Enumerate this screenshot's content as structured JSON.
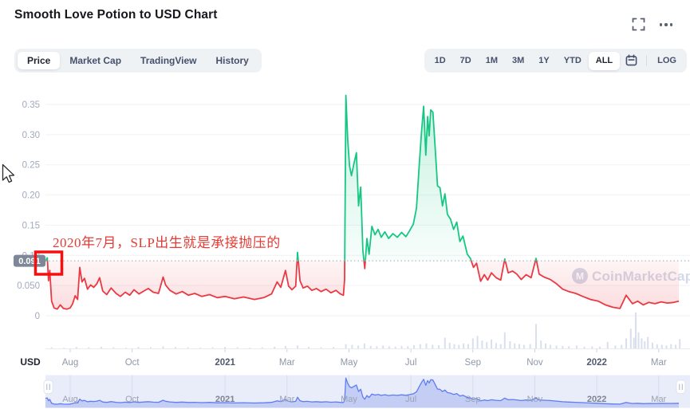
{
  "header": {
    "title": "Smooth Love Potion to USD Chart",
    "icons": [
      "fullscreen-icon",
      "more-ellipsis-icon"
    ]
  },
  "toolbar": {
    "tabs": [
      {
        "label": "Price",
        "active": true
      },
      {
        "label": "Market Cap",
        "active": false
      },
      {
        "label": "TradingView",
        "active": false
      },
      {
        "label": "History",
        "active": false
      }
    ],
    "ranges": [
      {
        "label": "1D",
        "active": false
      },
      {
        "label": "7D",
        "active": false
      },
      {
        "label": "1M",
        "active": false
      },
      {
        "label": "3M",
        "active": false
      },
      {
        "label": "1Y",
        "active": false
      },
      {
        "label": "YTD",
        "active": false
      },
      {
        "label": "ALL",
        "active": true
      }
    ],
    "calendar_icon": "calendar-icon",
    "log_label": "LOG"
  },
  "chart": {
    "unit_label": "USD",
    "current_price_badge": "0.091",
    "watermark": "CoinMarketCap",
    "annotation": {
      "text": "2020年7月，SLP出生就是承接抛压的",
      "color": "#e23c35",
      "box_color": "#f50f0f"
    },
    "colors": {
      "up_green": "#16c784",
      "down_red": "#ea3943",
      "badge_bg": "#7e8798",
      "dotted_ref": "#aeb6c6",
      "grid": "#f0f2f6",
      "volume_bar": "#d9dfec",
      "nav_line": "#5d7df2",
      "nav_fill": "#c4cdf4",
      "nav_bg": "#e9ecf9",
      "watermark": "#d3d9e8"
    }
  },
  "chart_data": {
    "type": "line",
    "title": "Smooth Love Potion to USD Chart",
    "ylabel": "USD",
    "ylim": [
      0,
      0.37
    ],
    "x_unit": "months since 2020-08-01 (ALL range: Jul 2020 – Mar 2022)",
    "x_range": [
      -0.8,
      19.65
    ],
    "current_price": 0.091,
    "line_color_rule": "green where price is above current_price 0.091, red where below",
    "grid": true,
    "y_ticks": [
      {
        "v": 0.35,
        "label": "0.35"
      },
      {
        "v": 0.3,
        "label": "0.30"
      },
      {
        "v": 0.25,
        "label": "0.25"
      },
      {
        "v": 0.2,
        "label": "0.20"
      },
      {
        "v": 0.15,
        "label": "0.15"
      },
      {
        "v": 0.1,
        "label": "0.10"
      },
      {
        "v": 0.05,
        "label": "0.050"
      },
      {
        "v": 0,
        "label": "0"
      }
    ],
    "x_ticks": [
      {
        "m": 0,
        "label": "Aug",
        "year": false
      },
      {
        "m": 2,
        "label": "Oct",
        "year": false
      },
      {
        "m": 5,
        "label": "2021",
        "year": true
      },
      {
        "m": 7,
        "label": "Mar",
        "year": false
      },
      {
        "m": 9,
        "label": "May",
        "year": false
      },
      {
        "m": 11,
        "label": "Jul",
        "year": false
      },
      {
        "m": 13,
        "label": "Sep",
        "year": false
      },
      {
        "m": 15,
        "label": "Nov",
        "year": false
      },
      {
        "m": 17,
        "label": "2022",
        "year": true
      },
      {
        "m": 19,
        "label": "Mar",
        "year": false
      }
    ],
    "series": [
      {
        "name": "SLP/USD price",
        "points": [
          [
            -0.8,
            0.09
          ],
          [
            -0.74,
            0.096
          ],
          [
            -0.7,
            0.058
          ],
          [
            -0.66,
            0.075
          ],
          [
            -0.6,
            0.024
          ],
          [
            -0.52,
            0.013
          ],
          [
            -0.42,
            0.011
          ],
          [
            -0.32,
            0.018
          ],
          [
            -0.22,
            0.012
          ],
          [
            -0.1,
            0.011
          ],
          [
            0.0,
            0.013
          ],
          [
            0.08,
            0.02
          ],
          [
            0.16,
            0.033
          ],
          [
            0.24,
            0.027
          ],
          [
            0.31,
            0.08
          ],
          [
            0.38,
            0.056
          ],
          [
            0.46,
            0.062
          ],
          [
            0.56,
            0.044
          ],
          [
            0.66,
            0.051
          ],
          [
            0.76,
            0.047
          ],
          [
            0.86,
            0.053
          ],
          [
            0.95,
            0.063
          ],
          [
            1.05,
            0.041
          ],
          [
            1.18,
            0.035
          ],
          [
            1.32,
            0.046
          ],
          [
            1.48,
            0.037
          ],
          [
            1.62,
            0.032
          ],
          [
            1.78,
            0.039
          ],
          [
            1.92,
            0.034
          ],
          [
            2.06,
            0.043
          ],
          [
            2.22,
            0.036
          ],
          [
            2.38,
            0.041
          ],
          [
            2.52,
            0.045
          ],
          [
            2.68,
            0.039
          ],
          [
            2.85,
            0.037
          ],
          [
            3.0,
            0.064
          ],
          [
            3.08,
            0.051
          ],
          [
            3.22,
            0.042
          ],
          [
            3.42,
            0.036
          ],
          [
            3.62,
            0.04
          ],
          [
            3.82,
            0.034
          ],
          [
            4.02,
            0.037
          ],
          [
            4.25,
            0.032
          ],
          [
            4.5,
            0.035
          ],
          [
            4.75,
            0.03
          ],
          [
            5.0,
            0.032
          ],
          [
            5.3,
            0.028
          ],
          [
            5.6,
            0.031
          ],
          [
            5.95,
            0.027
          ],
          [
            6.25,
            0.03
          ],
          [
            6.5,
            0.036
          ],
          [
            6.68,
            0.056
          ],
          [
            6.8,
            0.047
          ],
          [
            6.95,
            0.075
          ],
          [
            7.05,
            0.049
          ],
          [
            7.16,
            0.043
          ],
          [
            7.28,
            0.049
          ],
          [
            7.34,
            0.105
          ],
          [
            7.42,
            0.058
          ],
          [
            7.52,
            0.046
          ],
          [
            7.66,
            0.049
          ],
          [
            7.8,
            0.042
          ],
          [
            7.95,
            0.045
          ],
          [
            8.1,
            0.04
          ],
          [
            8.26,
            0.044
          ],
          [
            8.42,
            0.038
          ],
          [
            8.58,
            0.042
          ],
          [
            8.72,
            0.036
          ],
          [
            8.82,
            0.034
          ],
          [
            8.86,
            0.06
          ],
          [
            8.9,
            0.365
          ],
          [
            8.96,
            0.292
          ],
          [
            9.02,
            0.248
          ],
          [
            9.08,
            0.232
          ],
          [
            9.16,
            0.252
          ],
          [
            9.24,
            0.27
          ],
          [
            9.31,
            0.182
          ],
          [
            9.38,
            0.213
          ],
          [
            9.45,
            0.108
          ],
          [
            9.51,
            0.078
          ],
          [
            9.58,
            0.128
          ],
          [
            9.65,
            0.102
          ],
          [
            9.74,
            0.148
          ],
          [
            9.84,
            0.134
          ],
          [
            9.94,
            0.143
          ],
          [
            10.04,
            0.13
          ],
          [
            10.16,
            0.139
          ],
          [
            10.28,
            0.128
          ],
          [
            10.42,
            0.136
          ],
          [
            10.56,
            0.13
          ],
          [
            10.7,
            0.138
          ],
          [
            10.84,
            0.131
          ],
          [
            10.96,
            0.141
          ],
          [
            11.08,
            0.152
          ],
          [
            11.18,
            0.178
          ],
          [
            11.27,
            0.25
          ],
          [
            11.34,
            0.302
          ],
          [
            11.41,
            0.347
          ],
          [
            11.48,
            0.266
          ],
          [
            11.54,
            0.33
          ],
          [
            11.59,
            0.298
          ],
          [
            11.64,
            0.341
          ],
          [
            11.71,
            0.337
          ],
          [
            11.78,
            0.281
          ],
          [
            11.86,
            0.215
          ],
          [
            11.94,
            0.212
          ],
          [
            12.02,
            0.182
          ],
          [
            12.1,
            0.202
          ],
          [
            12.18,
            0.168
          ],
          [
            12.28,
            0.16
          ],
          [
            12.38,
            0.143
          ],
          [
            12.48,
            0.155
          ],
          [
            12.58,
            0.123
          ],
          [
            12.68,
            0.132
          ],
          [
            12.82,
            0.102
          ],
          [
            12.92,
            0.095
          ],
          [
            13.02,
            0.08
          ],
          [
            13.12,
            0.087
          ],
          [
            13.25,
            0.057
          ],
          [
            13.37,
            0.068
          ],
          [
            13.48,
            0.059
          ],
          [
            13.6,
            0.071
          ],
          [
            13.75,
            0.063
          ],
          [
            13.9,
            0.059
          ],
          [
            14.03,
            0.094
          ],
          [
            14.14,
            0.071
          ],
          [
            14.28,
            0.074
          ],
          [
            14.42,
            0.069
          ],
          [
            14.56,
            0.06
          ],
          [
            14.72,
            0.068
          ],
          [
            14.88,
            0.063
          ],
          [
            15.04,
            0.095
          ],
          [
            15.14,
            0.069
          ],
          [
            15.3,
            0.064
          ],
          [
            15.5,
            0.06
          ],
          [
            15.7,
            0.053
          ],
          [
            15.9,
            0.044
          ],
          [
            16.1,
            0.04
          ],
          [
            16.32,
            0.037
          ],
          [
            16.55,
            0.032
          ],
          [
            16.8,
            0.027
          ],
          [
            17.05,
            0.024
          ],
          [
            17.28,
            0.018
          ],
          [
            17.52,
            0.014
          ],
          [
            17.75,
            0.012
          ],
          [
            17.95,
            0.034
          ],
          [
            18.05,
            0.027
          ],
          [
            18.15,
            0.02
          ],
          [
            18.32,
            0.024
          ],
          [
            18.5,
            0.018
          ],
          [
            18.68,
            0.022
          ],
          [
            18.88,
            0.02
          ],
          [
            19.08,
            0.023
          ],
          [
            19.28,
            0.021
          ],
          [
            19.48,
            0.022
          ],
          [
            19.65,
            0.024
          ]
        ]
      }
    ],
    "volume_bars_relative": [
      [
        -0.6,
        0.03
      ],
      [
        -0.2,
        0.02
      ],
      [
        0.2,
        0.04
      ],
      [
        0.6,
        0.03
      ],
      [
        1.0,
        0.05
      ],
      [
        1.4,
        0.03
      ],
      [
        1.8,
        0.02
      ],
      [
        2.2,
        0.04
      ],
      [
        2.6,
        0.03
      ],
      [
        3.0,
        0.06
      ],
      [
        3.4,
        0.04
      ],
      [
        3.8,
        0.03
      ],
      [
        4.2,
        0.02
      ],
      [
        4.6,
        0.03
      ],
      [
        5.0,
        0.04
      ],
      [
        5.4,
        0.03
      ],
      [
        5.8,
        0.02
      ],
      [
        6.2,
        0.03
      ],
      [
        6.6,
        0.05
      ],
      [
        6.95,
        0.07
      ],
      [
        7.34,
        0.08
      ],
      [
        7.7,
        0.04
      ],
      [
        8.1,
        0.03
      ],
      [
        8.5,
        0.04
      ],
      [
        8.9,
        0.12
      ],
      [
        9.1,
        0.1
      ],
      [
        9.3,
        0.08
      ],
      [
        9.5,
        0.14
      ],
      [
        9.7,
        0.07
      ],
      [
        9.9,
        0.06
      ],
      [
        10.1,
        0.08
      ],
      [
        10.3,
        0.06
      ],
      [
        10.5,
        0.05
      ],
      [
        10.7,
        0.07
      ],
      [
        10.9,
        0.06
      ],
      [
        11.1,
        0.09
      ],
      [
        11.3,
        0.12
      ],
      [
        11.5,
        0.14
      ],
      [
        11.7,
        0.1
      ],
      [
        11.9,
        0.09
      ],
      [
        12.1,
        0.3
      ],
      [
        12.25,
        0.16
      ],
      [
        12.4,
        0.12
      ],
      [
        12.55,
        0.1
      ],
      [
        12.7,
        0.14
      ],
      [
        12.85,
        0.12
      ],
      [
        13.0,
        0.28
      ],
      [
        13.15,
        0.35
      ],
      [
        13.3,
        0.22
      ],
      [
        13.45,
        0.18
      ],
      [
        13.6,
        0.25
      ],
      [
        13.75,
        0.15
      ],
      [
        13.9,
        0.12
      ],
      [
        14.03,
        0.45
      ],
      [
        14.2,
        0.2
      ],
      [
        14.35,
        0.14
      ],
      [
        14.5,
        0.12
      ],
      [
        14.65,
        0.1
      ],
      [
        14.85,
        0.12
      ],
      [
        15.04,
        0.68
      ],
      [
        15.2,
        0.22
      ],
      [
        15.35,
        0.14
      ],
      [
        15.5,
        0.1
      ],
      [
        15.7,
        0.08
      ],
      [
        15.9,
        0.07
      ],
      [
        16.1,
        0.06
      ],
      [
        16.35,
        0.08
      ],
      [
        16.6,
        0.05
      ],
      [
        16.85,
        0.06
      ],
      [
        17.1,
        0.05
      ],
      [
        17.35,
        0.18
      ],
      [
        17.6,
        0.08
      ],
      [
        17.8,
        0.1
      ],
      [
        17.95,
        0.28
      ],
      [
        18.1,
        0.55
      ],
      [
        18.2,
        0.3
      ],
      [
        18.26,
        1.0
      ],
      [
        18.35,
        0.45
      ],
      [
        18.45,
        0.28
      ],
      [
        18.55,
        0.2
      ],
      [
        18.65,
        0.32
      ],
      [
        18.8,
        0.16
      ],
      [
        18.95,
        0.12
      ],
      [
        19.1,
        0.1
      ],
      [
        19.25,
        0.08
      ],
      [
        19.4,
        0.12
      ],
      [
        19.55,
        0.1
      ],
      [
        19.68,
        0.26
      ]
    ],
    "navigator": {
      "description": "range selector minimap showing full series, both handles at extremes (ALL selected)",
      "handle_icon": "drag-handle-icon"
    }
  }
}
